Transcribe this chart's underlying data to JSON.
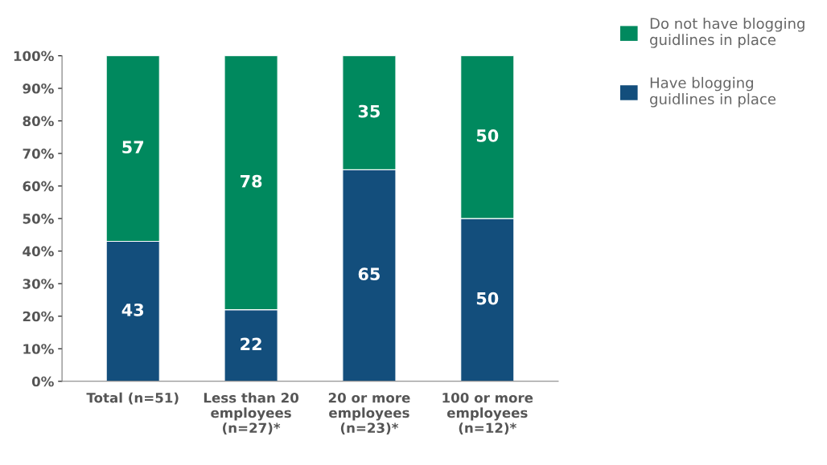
{
  "chart_data": {
    "type": "bar",
    "stacked": true,
    "categories": [
      "Total (n=51)",
      "Less than 20\nemployees\n(n=27)*",
      "20 or more\nemployees\n(n=23)*",
      "100 or more\nemployees\n(n=12)*"
    ],
    "series": [
      {
        "name": "Have blogging\nguidlines in place",
        "color": "#134e7c",
        "values": [
          43,
          22,
          65,
          50
        ]
      },
      {
        "name": "Do not have blogging\nguidlines in place",
        "color": "#00895e",
        "values": [
          57,
          78,
          35,
          50
        ]
      }
    ],
    "ylim": [
      0,
      100
    ],
    "yticks": [
      {
        "value": 0,
        "label": "0%"
      },
      {
        "value": 10,
        "label": "10%"
      },
      {
        "value": 20,
        "label": "20%"
      },
      {
        "value": 30,
        "label": "30%"
      },
      {
        "value": 40,
        "label": "40%"
      },
      {
        "value": 50,
        "label": "50%"
      },
      {
        "value": 60,
        "label": "60%"
      },
      {
        "value": 70,
        "label": "70%"
      },
      {
        "value": 80,
        "label": "80%"
      },
      {
        "value": 90,
        "label": "90%"
      },
      {
        "value": 100,
        "label": "100%"
      }
    ],
    "data_labels": true,
    "grid": false,
    "legend": "top right"
  }
}
